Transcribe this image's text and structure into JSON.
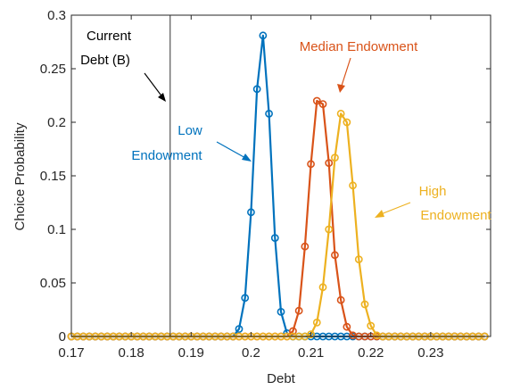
{
  "chart_data": {
    "type": "line",
    "xlabel": "Debt",
    "ylabel": "Choice Probability",
    "xlim": [
      0.17,
      0.24
    ],
    "ylim": [
      0,
      0.3
    ],
    "xticks": [
      0.17,
      0.18,
      0.19,
      0.2,
      0.21,
      0.22,
      0.23
    ],
    "yticks": [
      0,
      0.05,
      0.1,
      0.15,
      0.2,
      0.25,
      0.3
    ],
    "xtick_labels": [
      "0.17",
      "0.18",
      "0.19",
      "0.2",
      "0.21",
      "0.22",
      "0.23"
    ],
    "ytick_labels": [
      "0",
      "0.05",
      "0.1",
      "0.15",
      "0.2",
      "0.25",
      "0.3"
    ],
    "grid": false,
    "marker": "circle",
    "x_range": {
      "start": 0.17,
      "end": 0.239,
      "step": 0.001
    },
    "reference_line": {
      "x": 0.1865
    },
    "series": [
      {
        "color": "#0072BD",
        "points": [
          [
            0.197,
            0.0
          ],
          [
            0.198,
            0.007
          ],
          [
            0.199,
            0.036
          ],
          [
            0.2,
            0.116
          ],
          [
            0.201,
            0.231
          ],
          [
            0.202,
            0.281
          ],
          [
            0.203,
            0.208
          ],
          [
            0.204,
            0.092
          ],
          [
            0.205,
            0.023
          ],
          [
            0.206,
            0.003
          ],
          [
            0.207,
            0.0
          ]
        ]
      },
      {
        "color": "#D95319",
        "points": [
          [
            0.206,
            0.0
          ],
          [
            0.207,
            0.005
          ],
          [
            0.208,
            0.024
          ],
          [
            0.209,
            0.084
          ],
          [
            0.21,
            0.161
          ],
          [
            0.211,
            0.22
          ],
          [
            0.212,
            0.217
          ],
          [
            0.213,
            0.162
          ],
          [
            0.214,
            0.076
          ],
          [
            0.215,
            0.034
          ],
          [
            0.216,
            0.009
          ],
          [
            0.217,
            0.001
          ],
          [
            0.218,
            0.0
          ]
        ]
      },
      {
        "color": "#EDB120",
        "points": [
          [
            0.209,
            0.0
          ],
          [
            0.21,
            0.002
          ],
          [
            0.211,
            0.013
          ],
          [
            0.212,
            0.046
          ],
          [
            0.213,
            0.1
          ],
          [
            0.214,
            0.167
          ],
          [
            0.215,
            0.208
          ],
          [
            0.216,
            0.2
          ],
          [
            0.217,
            0.141
          ],
          [
            0.218,
            0.072
          ],
          [
            0.219,
            0.03
          ],
          [
            0.22,
            0.01
          ],
          [
            0.221,
            0.001
          ],
          [
            0.222,
            0.0
          ]
        ]
      }
    ],
    "annotations": {
      "current_debt": {
        "line1": "Current",
        "line2": "Debt (B)",
        "color": "#000000"
      },
      "low": {
        "line1": "Low",
        "line2": "Endowment",
        "color": "#0072BD"
      },
      "median": {
        "line1": "Median Endowment",
        "color": "#D95319"
      },
      "high": {
        "line1": "High",
        "line2": "Endowment",
        "color": "#EDB120"
      }
    }
  }
}
